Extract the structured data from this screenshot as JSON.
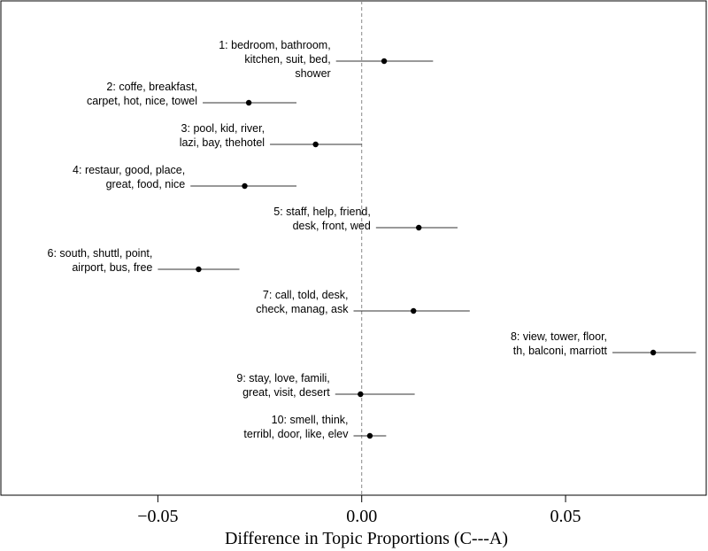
{
  "chart_data": {
    "type": "scatter",
    "title": "",
    "xlabel": "Difference in Topic Proportions (C---A)",
    "ylabel": "",
    "xlim": [
      -0.0885,
      0.0845
    ],
    "x_ticks": [
      {
        "value": -0.05,
        "label": "−0.05"
      },
      {
        "value": 0.0,
        "label": "0.00"
      },
      {
        "value": 0.05,
        "label": "0.05"
      }
    ],
    "zero_line": {
      "value": 0.0,
      "style": "dashed",
      "color": "#888888"
    },
    "grid": false,
    "legend": "none",
    "marker_color": "#000000",
    "topics": [
      {
        "label_lines": [
          "1: bedroom, bathroom,",
          "kitchen, suit, bed,",
          "shower"
        ],
        "estimate": 0.0055,
        "ci": [
          -0.0063,
          0.0175
        ]
      },
      {
        "label_lines": [
          "2: coffe, breakfast,",
          "carpet, hot, nice, towel"
        ],
        "estimate": -0.0277,
        "ci": [
          -0.039,
          -0.016
        ]
      },
      {
        "label_lines": [
          "3: pool, kid, river,",
          "lazi, bay, thehotel"
        ],
        "estimate": -0.0113,
        "ci": [
          -0.0225,
          0.0
        ]
      },
      {
        "label_lines": [
          "4: restaur, good, place,",
          "great, food, nice"
        ],
        "estimate": -0.0287,
        "ci": [
          -0.042,
          -0.016
        ]
      },
      {
        "label_lines": [
          "5: staff, help, friend,",
          "desk, front, wed"
        ],
        "estimate": 0.014,
        "ci": [
          0.0035,
          0.0235
        ]
      },
      {
        "label_lines": [
          "6: south, shuttl, point,",
          "airport, bus, free"
        ],
        "estimate": -0.04,
        "ci": [
          -0.05,
          -0.03
        ]
      },
      {
        "label_lines": [
          "7: call, told, desk,",
          "check, manag, ask"
        ],
        "estimate": 0.0127,
        "ci": [
          -0.002,
          0.0265
        ]
      },
      {
        "label_lines": [
          "8: view, tower, floor,",
          "th, balconi, marriott"
        ],
        "estimate": 0.0715,
        "ci": [
          0.0615,
          0.082
        ]
      },
      {
        "label_lines": [
          "9: stay, love, famili,",
          "great, visit, desert"
        ],
        "estimate": -0.0003,
        "ci": [
          -0.0065,
          0.013
        ]
      },
      {
        "label_lines": [
          "10: smell, think,",
          "terribl, door, like, elev"
        ],
        "estimate": 0.002,
        "ci": [
          -0.002,
          0.006
        ]
      }
    ]
  }
}
